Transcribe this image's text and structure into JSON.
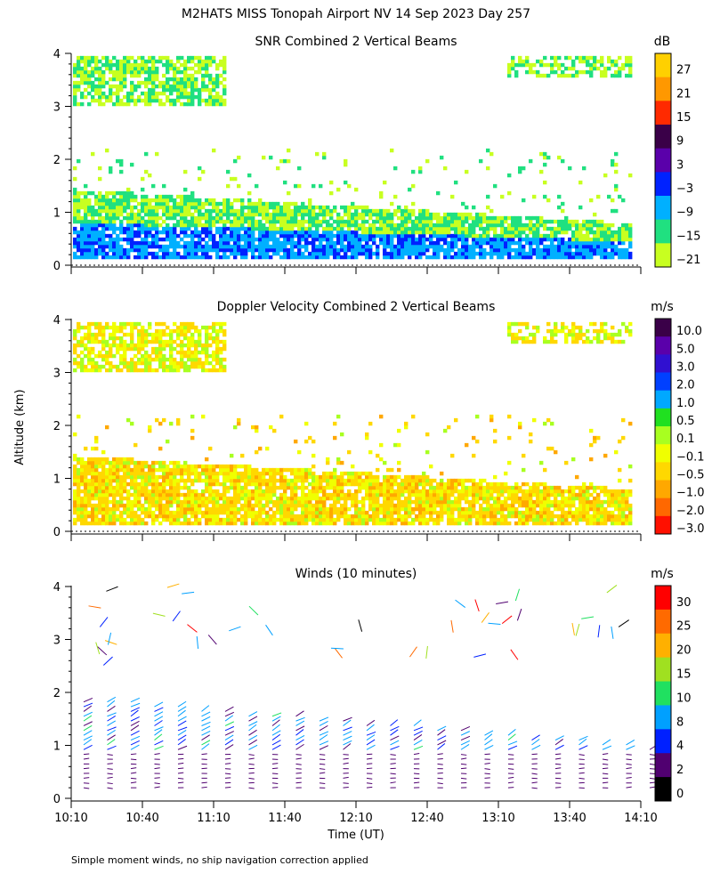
{
  "title": "M2HATS MISS Tonopah Airport NV  14 Sep 2023 Day 257",
  "ylabel": "Altitude (km)",
  "footnote": "Simple moment winds, no ship navigation correction applied",
  "chart_data": [
    {
      "type": "heatmap",
      "title": "SNR Combined 2 Vertical Beams",
      "units": "dB",
      "ylim": [
        0,
        4
      ],
      "yticks": [
        "0",
        "1",
        "2",
        "3",
        "4"
      ],
      "colorbar_labels": [
        "27",
        "21",
        "15",
        "9",
        "3",
        "−3",
        "−9",
        "−15",
        "−21"
      ],
      "colorbar_colors": [
        "#ffd000",
        "#ff9800",
        "#ff2a00",
        "#3a0048",
        "#5a00aa",
        "#0022ff",
        "#00b0ff",
        "#20e080",
        "#c8ff20"
      ]
    },
    {
      "type": "heatmap",
      "title": "Doppler Velocity Combined 2 Vertical Beams",
      "units": "m/s",
      "ylim": [
        0,
        4
      ],
      "yticks": [
        "0",
        "1",
        "2",
        "3",
        "4"
      ],
      "colorbar_labels": [
        "10.0",
        "5.0",
        "3.0",
        "2.0",
        "1.0",
        "0.5",
        "0.1",
        "−0.1",
        "−0.5",
        "−1.0",
        "−2.0",
        "−3.0"
      ],
      "colorbar_colors": [
        "#3a0048",
        "#5a00aa",
        "#3010d0",
        "#0040ff",
        "#00a8ff",
        "#20e020",
        "#a8ff20",
        "#f0ff00",
        "#ffd800",
        "#ffa800",
        "#ff6800",
        "#ff1000"
      ]
    },
    {
      "type": "scatter",
      "title": "Winds (10 minutes)",
      "units": "m/s",
      "ylim": [
        0,
        4
      ],
      "yticks": [
        "0",
        "1",
        "2",
        "3",
        "4"
      ],
      "colorbar_labels": [
        "30",
        "25",
        "20",
        "15",
        "10",
        "8",
        "4",
        "2",
        "0"
      ],
      "colorbar_colors": [
        "#ff0000",
        "#ff6a00",
        "#ffb000",
        "#a0e020",
        "#20e060",
        "#00a0ff",
        "#0020ff",
        "#500070",
        "#000000"
      ],
      "xlabel": "Time (UT)",
      "xticks": [
        "10:10",
        "10:40",
        "11:10",
        "11:40",
        "12:10",
        "12:40",
        "13:10",
        "13:40",
        "14:10"
      ]
    }
  ]
}
